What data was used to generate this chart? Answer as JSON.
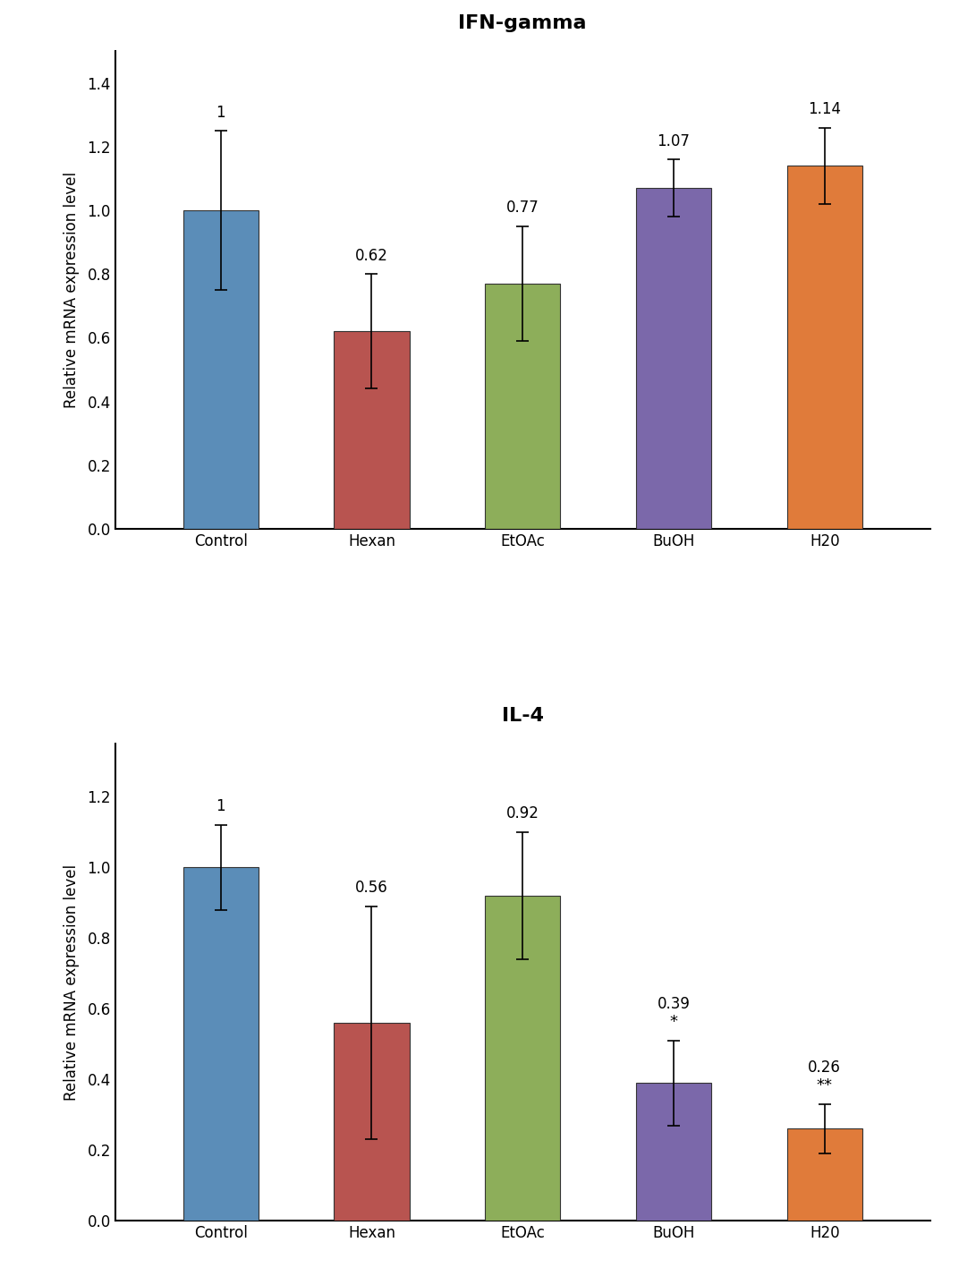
{
  "charts": [
    {
      "title": "IFN-gamma",
      "categories": [
        "Control",
        "Hexan",
        "EtOAc",
        "BuOH",
        "H20"
      ],
      "values": [
        1.0,
        0.62,
        0.77,
        1.07,
        1.14
      ],
      "errors": [
        0.25,
        0.18,
        0.18,
        0.09,
        0.12
      ],
      "value_labels": [
        "1",
        "0.62",
        "0.77",
        "1.07",
        "1.14"
      ],
      "sig_labels": [
        "",
        "",
        "",
        "",
        ""
      ],
      "colors": [
        "#5B8DB8",
        "#B85450",
        "#8DAE5A",
        "#7B68AA",
        "#E07B3A"
      ],
      "ylim": [
        0,
        1.5
      ],
      "yticks": [
        0.0,
        0.2,
        0.4,
        0.6,
        0.8,
        1.0,
        1.2,
        1.4
      ],
      "ylabel": "Relative mRNA expression level"
    },
    {
      "title": "IL-4",
      "categories": [
        "Control",
        "Hexan",
        "EtOAc",
        "BuOH",
        "H20"
      ],
      "values": [
        1.0,
        0.56,
        0.92,
        0.39,
        0.26
      ],
      "errors": [
        0.12,
        0.33,
        0.18,
        0.12,
        0.07
      ],
      "value_labels": [
        "1",
        "0.56",
        "0.92",
        "0.39",
        "0.26"
      ],
      "sig_labels": [
        "",
        "",
        "",
        "*",
        "**"
      ],
      "colors": [
        "#5B8DB8",
        "#B85450",
        "#8DAE5A",
        "#7B68AA",
        "#E07B3A"
      ],
      "ylim": [
        0,
        1.35
      ],
      "yticks": [
        0.0,
        0.2,
        0.4,
        0.6,
        0.8,
        1.0,
        1.2
      ],
      "ylabel": "Relative mRNA expression level"
    }
  ],
  "background_color": "#FFFFFF",
  "bar_width": 0.5,
  "title_fontsize": 16,
  "label_fontsize": 12,
  "tick_fontsize": 12,
  "value_label_fontsize": 12,
  "sig_label_fontsize": 13
}
